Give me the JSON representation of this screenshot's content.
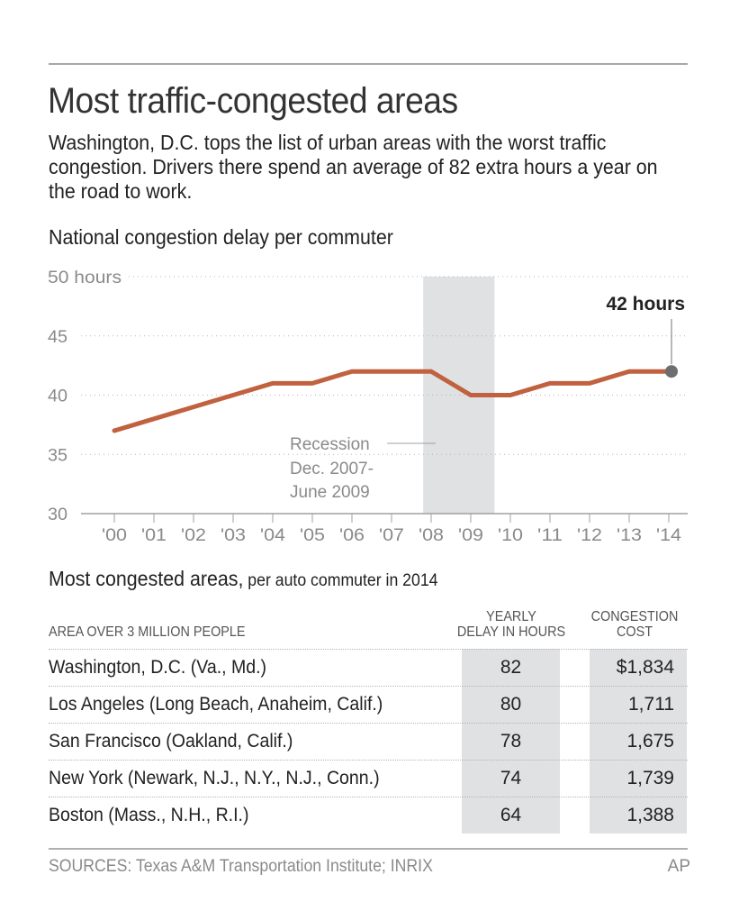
{
  "header": {
    "title": "Most traffic-congested areas",
    "intro": "Washington, D.C. tops the list of urban areas with the worst traffic congestion. Drivers there spend an average of 82 extra hours a year on the road to work."
  },
  "colors": {
    "line": "#c0613f",
    "recession_band": "#e0e1e3",
    "endpoint": "#6d6e70",
    "axis_text": "#8a8a8a",
    "table_shade": "#e0e1e3"
  },
  "chart_data": {
    "type": "line",
    "title": "National congestion delay per commuter",
    "xlabel": "",
    "ylabel": "hours",
    "x": [
      "'00",
      "'01",
      "'02",
      "'03",
      "'04",
      "'05",
      "'06",
      "'07",
      "'08",
      "'09",
      "'10",
      "'11",
      "'12",
      "'13",
      "'14"
    ],
    "series": [
      {
        "name": "Congestion delay per commuter (hours)",
        "values": [
          37,
          38,
          39,
          40,
          41,
          41,
          42,
          42,
          42,
          40,
          40,
          41,
          41,
          42,
          42
        ]
      }
    ],
    "ylim": [
      30,
      50
    ],
    "yticks": [
      30,
      35,
      40,
      45,
      50
    ],
    "ytick_labels": [
      "30",
      "35",
      "40",
      "45",
      "50 hours"
    ],
    "grid": true,
    "shaded_region": {
      "label_lines": [
        "Recession",
        "Dec. 2007-",
        "June 2009"
      ],
      "x_start": 7.8,
      "x_end": 9.6
    },
    "endpoint_annotation": "42 hours",
    "legend": "none"
  },
  "table": {
    "title": "Most congested areas,",
    "subtitle": " per auto commuter in 2014",
    "headers": {
      "area": "AREA OVER 3 MILLION PEOPLE",
      "delay_line1": "YEARLY",
      "delay_line2": "DELAY IN HOURS",
      "cost_line1": "CONGESTION",
      "cost_line2": "COST"
    },
    "rows": [
      {
        "area": "Washington, D.C. (Va., Md.)",
        "delay": "82",
        "cost": "$1,834"
      },
      {
        "area": "Los Angeles (Long Beach, Anaheim, Calif.)",
        "delay": "80",
        "cost": "1,711"
      },
      {
        "area": "San Francisco (Oakland, Calif.)",
        "delay": "78",
        "cost": "1,675"
      },
      {
        "area": "New York (Newark, N.J., N.Y., N.J., Conn.)",
        "delay": "74",
        "cost": "1,739"
      },
      {
        "area": "Boston (Mass., N.H., R.I.)",
        "delay": "64",
        "cost": "1,388"
      }
    ]
  },
  "footer": {
    "sources": "SOURCES: Texas A&M Transportation Institute; INRIX",
    "credit": "AP"
  }
}
